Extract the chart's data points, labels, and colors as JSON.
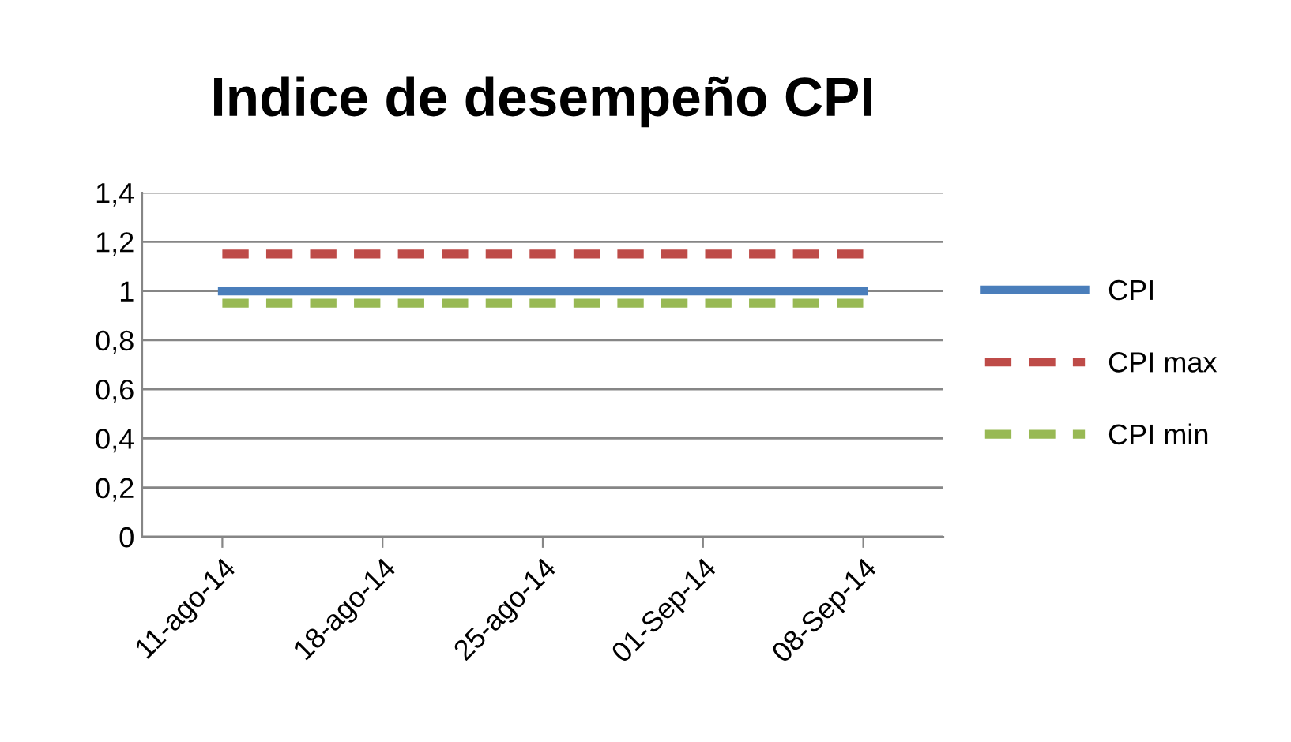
{
  "chart_data": {
    "type": "line",
    "title": "Indice de desempeño CPI",
    "categories": [
      "11-ago-14",
      "18-ago-14",
      "25-ago-14",
      "01-Sep-14",
      "08-Sep-14"
    ],
    "series": [
      {
        "name": "CPI",
        "color": "#4a7ebb",
        "values": [
          1,
          1,
          1,
          1,
          1
        ],
        "line_style": "solid"
      },
      {
        "name": "CPI max",
        "color": "#be4b48",
        "values": [
          1.15,
          1.15,
          1.15,
          1.15,
          1.15
        ],
        "line_style": "dashed"
      },
      {
        "name": "CPI min",
        "color": "#98b954",
        "values": [
          0.95,
          0.95,
          0.95,
          0.95,
          0.95
        ],
        "line_style": "dashed"
      }
    ],
    "ylim": [
      0,
      1.4
    ],
    "yticks": [
      0,
      {
        "value": 0.2,
        "label": "0,2"
      },
      {
        "value": 0.4,
        "label": "0,4"
      },
      {
        "value": 0.6,
        "label": "0,6"
      },
      {
        "value": 0.8,
        "label": "0,8"
      },
      1,
      {
        "value": 1.2,
        "label": "1,2"
      },
      {
        "value": 1.4,
        "label": "1,4"
      }
    ],
    "grid": "y",
    "legend": "right",
    "marker": "none"
  }
}
